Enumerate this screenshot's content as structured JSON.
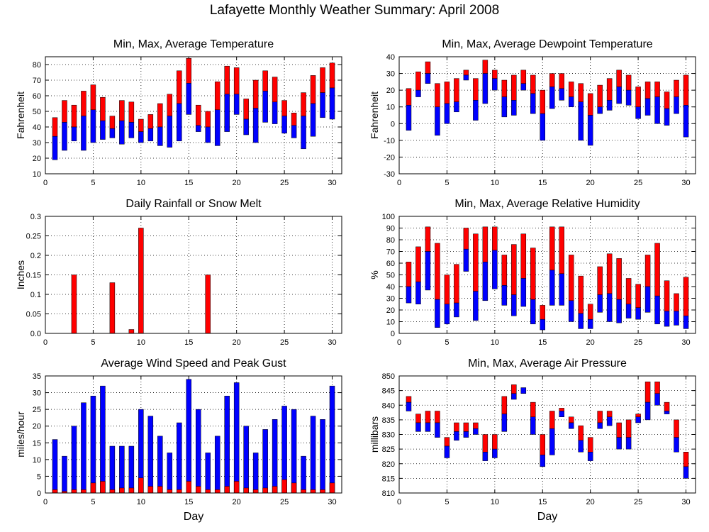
{
  "title": "Lafayette Monthly Weather Summary: April 2008",
  "colors": {
    "max_part": "#ff0000",
    "avg_to_min_part": "#0000ff",
    "gust": "#0000ff",
    "avg_wind": "#ff0000",
    "rain": "#ff0000",
    "grid": "#000000"
  },
  "chart_data": [
    {
      "type": "bar",
      "subtype": "floating-range",
      "title": "Min, Max, Average Temperature",
      "xlabel": "",
      "ylabel": "Fahrenheit",
      "xlim": [
        0,
        31
      ],
      "ylim": [
        10,
        85
      ],
      "xticks": [
        0,
        5,
        10,
        15,
        20,
        25,
        30
      ],
      "yticks": [
        10,
        20,
        30,
        40,
        50,
        60,
        70,
        80
      ],
      "grid": true,
      "days": [
        1,
        2,
        3,
        4,
        5,
        6,
        7,
        8,
        9,
        10,
        11,
        12,
        13,
        14,
        15,
        16,
        17,
        18,
        19,
        20,
        21,
        22,
        23,
        24,
        25,
        26,
        27,
        28,
        29,
        30
      ],
      "min": [
        19,
        25,
        31,
        25,
        30,
        32,
        33,
        29,
        33,
        30,
        31,
        28,
        27,
        31,
        48,
        37,
        30,
        28,
        37,
        48,
        35,
        30,
        43,
        42,
        36,
        33,
        26,
        34,
        46,
        45
      ],
      "avg": [
        34,
        43,
        40,
        47,
        51,
        44,
        39,
        44,
        43,
        37,
        39,
        40,
        47,
        55,
        68,
        41,
        40,
        51,
        61,
        61,
        45,
        52,
        63,
        56,
        47,
        41,
        47,
        55,
        62,
        65
      ],
      "max": [
        46,
        57,
        54,
        63,
        67,
        59,
        47,
        57,
        56,
        45,
        48,
        55,
        61,
        76,
        84,
        54,
        50,
        69,
        79,
        78,
        58,
        70,
        76,
        72,
        57,
        49,
        62,
        73,
        78,
        81
      ]
    },
    {
      "type": "bar",
      "subtype": "floating-range",
      "title": "Min, Max, Average Dewpoint Temperature",
      "xlabel": "",
      "ylabel": "Fahrenheit",
      "xlim": [
        0,
        31
      ],
      "ylim": [
        -30,
        40
      ],
      "xticks": [
        0,
        5,
        10,
        15,
        20,
        25,
        30
      ],
      "yticks": [
        -30,
        -20,
        -10,
        0,
        10,
        20,
        30,
        40
      ],
      "grid": true,
      "days": [
        1,
        2,
        3,
        4,
        5,
        6,
        7,
        8,
        9,
        10,
        11,
        12,
        13,
        14,
        15,
        16,
        17,
        18,
        19,
        20,
        21,
        22,
        23,
        24,
        25,
        26,
        27,
        28,
        29,
        30
      ],
      "min": [
        -4,
        16,
        24,
        -7,
        0,
        7,
        26,
        2,
        12,
        20,
        4,
        5,
        20,
        6,
        -10,
        9,
        14,
        10,
        -10,
        -13,
        6,
        8,
        12,
        11,
        3,
        5,
        0,
        -1,
        6,
        -8
      ],
      "avg": [
        11,
        20,
        30,
        10,
        12,
        13,
        29,
        14,
        30,
        27,
        16,
        14,
        24,
        18,
        6,
        22,
        21,
        16,
        13,
        5,
        10,
        14,
        22,
        20,
        10,
        15,
        16,
        9,
        16,
        11
      ],
      "max": [
        21,
        31,
        37,
        24,
        25,
        27,
        32,
        27,
        38,
        32,
        26,
        29,
        32,
        29,
        20,
        30,
        30,
        25,
        24,
        18,
        23,
        27,
        32,
        29,
        22,
        25,
        25,
        19,
        26,
        29
      ]
    },
    {
      "type": "bar",
      "title": "Daily Rainfall or Snow Melt",
      "xlabel": "",
      "ylabel": "Inches",
      "xlim": [
        0,
        31
      ],
      "ylim": [
        0,
        0.3
      ],
      "xticks": [
        0,
        5,
        10,
        15,
        20,
        25,
        30
      ],
      "yticks": [
        "0.0",
        "0.05",
        "0.1",
        "0.15",
        "0.2",
        "0.25",
        "0.3"
      ],
      "grid": true,
      "days": [
        1,
        2,
        3,
        4,
        5,
        6,
        7,
        8,
        9,
        10,
        11,
        12,
        13,
        14,
        15,
        16,
        17,
        18,
        19,
        20,
        21,
        22,
        23,
        24,
        25,
        26,
        27,
        28,
        29,
        30
      ],
      "values": [
        0,
        0,
        0.15,
        0,
        0,
        0,
        0.13,
        0,
        0.01,
        0.27,
        0,
        0,
        0,
        0,
        0,
        0,
        0.15,
        0,
        0,
        0,
        0,
        0,
        0,
        0,
        0,
        0,
        0,
        0,
        0,
        0
      ]
    },
    {
      "type": "bar",
      "subtype": "floating-range",
      "title": "Min, Max, Average Relative Humidity",
      "xlabel": "",
      "ylabel": "%",
      "xlim": [
        0,
        31
      ],
      "ylim": [
        0,
        100
      ],
      "xticks": [
        0,
        5,
        10,
        15,
        20,
        25,
        30
      ],
      "yticks": [
        0,
        10,
        20,
        30,
        40,
        50,
        60,
        70,
        80,
        90,
        100
      ],
      "grid": true,
      "days": [
        1,
        2,
        3,
        4,
        5,
        6,
        7,
        8,
        9,
        10,
        11,
        12,
        13,
        14,
        15,
        16,
        17,
        18,
        19,
        20,
        21,
        22,
        23,
        24,
        25,
        26,
        27,
        28,
        29,
        30
      ],
      "min": [
        26,
        25,
        37,
        5,
        8,
        14,
        53,
        11,
        28,
        38,
        24,
        15,
        23,
        8,
        3,
        24,
        24,
        10,
        4,
        4,
        18,
        10,
        9,
        13,
        12,
        18,
        8,
        6,
        7,
        4
      ],
      "avg": [
        40,
        44,
        70,
        29,
        25,
        26,
        72,
        36,
        61,
        71,
        41,
        33,
        47,
        29,
        12,
        54,
        51,
        28,
        17,
        12,
        33,
        34,
        29,
        25,
        22,
        40,
        32,
        19,
        19,
        15
      ],
      "max": [
        61,
        74,
        91,
        77,
        50,
        59,
        90,
        85,
        91,
        91,
        67,
        76,
        85,
        73,
        24,
        91,
        91,
        67,
        49,
        25,
        57,
        68,
        64,
        47,
        42,
        67,
        77,
        45,
        34,
        48
      ]
    },
    {
      "type": "bar",
      "subtype": "overlaid",
      "title": "Average Wind Speed and Peak Gust",
      "xlabel": "Day",
      "ylabel": "miles/hour",
      "xlim": [
        0,
        31
      ],
      "ylim": [
        0,
        35
      ],
      "xticks": [
        0,
        5,
        10,
        15,
        20,
        25,
        30
      ],
      "yticks": [
        0,
        5,
        10,
        15,
        20,
        25,
        30,
        35
      ],
      "grid": true,
      "days": [
        1,
        2,
        3,
        4,
        5,
        6,
        7,
        8,
        9,
        10,
        11,
        12,
        13,
        14,
        15,
        16,
        17,
        18,
        19,
        20,
        21,
        22,
        23,
        24,
        25,
        26,
        27,
        28,
        29,
        30
      ],
      "series": [
        {
          "name": "Peak Gust",
          "values": [
            16,
            11,
            20,
            27,
            29,
            32,
            14,
            14,
            14,
            25,
            23,
            17,
            12,
            21,
            34,
            25,
            12,
            17,
            29,
            33,
            20,
            12,
            19,
            22,
            26,
            25,
            11,
            23,
            22,
            32
          ]
        },
        {
          "name": "Average Wind Speed",
          "values": [
            1,
            0.5,
            1,
            1,
            3,
            3.5,
            1,
            1.5,
            1.5,
            4.5,
            2,
            2,
            1,
            1,
            3.5,
            2,
            1,
            1,
            2,
            3.5,
            1.5,
            1,
            1.5,
            2,
            4,
            3,
            1,
            1,
            1,
            3
          ]
        }
      ]
    },
    {
      "type": "bar",
      "subtype": "floating-range",
      "title": "Min, Max, Average Air Pressure",
      "xlabel": "Day",
      "ylabel": "millibars",
      "xlim": [
        0,
        31
      ],
      "ylim": [
        810,
        850
      ],
      "xticks": [
        0,
        5,
        10,
        15,
        20,
        25,
        30
      ],
      "yticks": [
        810,
        815,
        820,
        825,
        830,
        835,
        840,
        845,
        850
      ],
      "grid": true,
      "days": [
        1,
        2,
        3,
        4,
        5,
        6,
        7,
        8,
        9,
        10,
        11,
        12,
        13,
        14,
        15,
        16,
        17,
        18,
        19,
        20,
        21,
        22,
        23,
        24,
        25,
        26,
        27,
        28,
        29,
        30
      ],
      "min": [
        838,
        831,
        831,
        829,
        822,
        828,
        829,
        830,
        821,
        822,
        831,
        842,
        844,
        830,
        819,
        823,
        836,
        832,
        824,
        821,
        832,
        833,
        825,
        825,
        834,
        835,
        840,
        837,
        824,
        815
      ],
      "avg": [
        841,
        834,
        834,
        834,
        826,
        831,
        831,
        832,
        824,
        825,
        837,
        844,
        846,
        836,
        823,
        832,
        838,
        834,
        828,
        824,
        834,
        836,
        829,
        829,
        836,
        841,
        844,
        838,
        829,
        819
      ],
      "max": [
        843,
        837,
        838,
        838,
        829,
        834,
        834,
        834,
        830,
        830,
        843,
        847,
        846,
        841,
        830,
        838,
        839,
        836,
        833,
        829,
        838,
        838,
        834,
        835,
        837,
        848,
        848,
        841,
        835,
        824
      ]
    }
  ]
}
